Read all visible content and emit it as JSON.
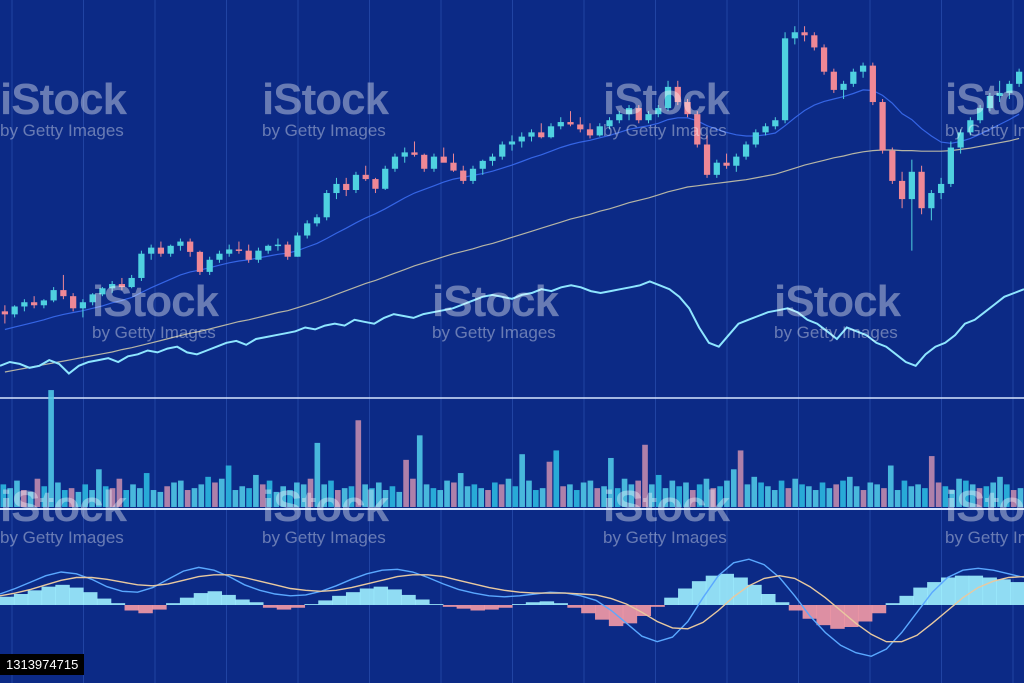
{
  "colors": {
    "background": "#0c2a86",
    "grid": "#2b4fb0",
    "up": "#4fd1e0",
    "down": "#ef8896",
    "price_line": "#8ee6ff",
    "ma_fast": "#3a6cf0",
    "ma_slow": "#c9c4a8",
    "divider": "#d7e6ff",
    "hist_pos": "#9ff0ff",
    "hist_neg": "#f49aa6"
  },
  "watermark": {
    "brand": "iStock",
    "credit": "by Getty Images"
  },
  "stock_id": "1313974715",
  "chart_data": [
    {
      "type": "candlestick",
      "panel": "price",
      "grid": true,
      "candles_ohlc": [
        [
          30,
          31,
          28,
          29.5
        ],
        [
          29.5,
          31,
          29,
          30.8
        ],
        [
          30.8,
          32,
          30,
          31.5
        ],
        [
          31.5,
          32.5,
          30.5,
          31
        ],
        [
          31,
          32,
          30.5,
          31.8
        ],
        [
          31.8,
          34,
          31.5,
          33.5
        ],
        [
          33.5,
          36,
          32,
          32.5
        ],
        [
          32.5,
          33,
          30,
          30.5
        ],
        [
          30.5,
          32,
          29,
          31.5
        ],
        [
          31.5,
          33,
          31,
          32.8
        ],
        [
          32.8,
          34,
          32.5,
          33.8
        ],
        [
          33.8,
          35,
          33,
          34.5
        ],
        [
          34.5,
          35.5,
          33.5,
          34
        ],
        [
          34,
          36,
          33.8,
          35.5
        ],
        [
          35.5,
          40,
          35,
          39.5
        ],
        [
          39.5,
          41,
          38.5,
          40.5
        ],
        [
          40.5,
          41.5,
          39,
          39.5
        ],
        [
          39.5,
          41,
          39,
          40.8
        ],
        [
          40.8,
          42,
          40,
          41.5
        ],
        [
          41.5,
          42,
          39,
          39.8
        ],
        [
          39.8,
          40,
          36,
          36.5
        ],
        [
          36.5,
          39,
          36,
          38.5
        ],
        [
          38.5,
          40,
          38,
          39.5
        ],
        [
          39.5,
          41,
          39,
          40.2
        ],
        [
          40.2,
          41.5,
          39.5,
          40
        ],
        [
          40,
          41,
          38,
          38.5
        ],
        [
          38.5,
          40.5,
          38,
          40
        ],
        [
          40,
          41,
          39.5,
          40.8
        ],
        [
          40.8,
          42,
          40,
          41
        ],
        [
          41,
          41.5,
          38.5,
          39
        ],
        [
          39,
          43,
          39,
          42.5
        ],
        [
          42.5,
          45,
          42,
          44.5
        ],
        [
          44.5,
          46,
          44,
          45.5
        ],
        [
          45.5,
          50,
          45,
          49.5
        ],
        [
          49.5,
          52,
          48.5,
          51
        ],
        [
          51,
          52,
          49,
          50
        ],
        [
          50,
          53,
          49.5,
          52.5
        ],
        [
          52.5,
          54,
          51.5,
          51.8
        ],
        [
          51.8,
          52,
          49.5,
          50.2
        ],
        [
          50.2,
          54,
          50,
          53.5
        ],
        [
          53.5,
          56,
          53,
          55.5
        ],
        [
          55.5,
          57,
          54.5,
          56.2
        ],
        [
          56.2,
          58,
          55.5,
          55.8
        ],
        [
          55.8,
          56,
          53,
          53.5
        ],
        [
          53.5,
          56,
          53,
          55.5
        ],
        [
          55.5,
          57,
          55,
          54.5
        ],
        [
          54.5,
          56,
          53,
          53.2
        ],
        [
          53.2,
          54,
          51,
          51.5
        ],
        [
          51.5,
          54,
          51,
          53.5
        ],
        [
          53.5,
          55,
          52.5,
          54.8
        ],
        [
          54.8,
          56,
          54,
          55.5
        ],
        [
          55.5,
          58,
          55,
          57.5
        ],
        [
          57.5,
          59,
          56.5,
          58
        ],
        [
          58,
          59.5,
          57,
          58.8
        ],
        [
          58.8,
          60,
          58,
          59.5
        ],
        [
          59.5,
          61,
          58.5,
          58.7
        ],
        [
          58.7,
          61,
          58.5,
          60.5
        ],
        [
          60.5,
          62,
          60,
          61.2
        ],
        [
          61.2,
          63,
          60.5,
          60.8
        ],
        [
          60.8,
          62,
          59.5,
          60
        ],
        [
          60,
          61,
          58.5,
          59
        ],
        [
          59,
          61,
          58.8,
          60.5
        ],
        [
          60.5,
          62,
          60,
          61.5
        ],
        [
          61.5,
          63,
          61,
          62.5
        ],
        [
          62.5,
          64,
          61.5,
          63.5
        ],
        [
          63.5,
          64,
          61,
          61.5
        ],
        [
          61.5,
          63,
          61,
          62.5
        ],
        [
          62.5,
          64,
          62,
          63.5
        ],
        [
          63.5,
          68,
          63,
          67
        ],
        [
          67,
          68,
          64,
          64.5
        ],
        [
          64.5,
          65,
          62,
          62.5
        ],
        [
          62.5,
          63,
          57,
          57.5
        ],
        [
          57.5,
          59,
          52,
          52.5
        ],
        [
          52.5,
          55,
          52,
          54.5
        ],
        [
          54.5,
          56,
          53.5,
          54
        ],
        [
          54,
          56,
          53,
          55.5
        ],
        [
          55.5,
          58,
          55,
          57.5
        ],
        [
          57.5,
          60,
          57,
          59.5
        ],
        [
          59.5,
          61,
          59,
          60.5
        ],
        [
          60.5,
          62,
          60,
          61.5
        ],
        [
          61.5,
          76,
          61,
          75
        ],
        [
          75,
          77,
          74,
          76
        ],
        [
          76,
          77,
          74.5,
          75.5
        ],
        [
          75.5,
          76,
          73,
          73.5
        ],
        [
          73.5,
          74,
          69,
          69.5
        ],
        [
          69.5,
          70,
          66,
          66.5
        ],
        [
          66.5,
          68,
          65,
          67.5
        ],
        [
          67.5,
          70,
          67,
          69.5
        ],
        [
          69.5,
          71,
          68.5,
          70.5
        ],
        [
          70.5,
          71,
          64,
          64.5
        ],
        [
          64.5,
          65,
          56,
          56.5
        ],
        [
          56.5,
          57,
          51,
          51.5
        ],
        [
          51.5,
          53,
          47,
          48.5
        ],
        [
          48.5,
          55,
          40,
          53
        ],
        [
          53,
          54,
          46,
          47
        ],
        [
          47,
          50,
          45,
          49.5
        ],
        [
          49.5,
          52,
          48.5,
          51
        ],
        [
          51,
          58,
          50.5,
          57
        ],
        [
          57,
          60,
          56,
          59.5
        ],
        [
          59.5,
          62,
          59,
          61.5
        ],
        [
          61.5,
          64,
          61,
          63.5
        ],
        [
          63.5,
          66,
          63,
          65.5
        ],
        [
          65.5,
          68,
          64.5,
          66
        ],
        [
          66,
          68,
          65,
          67.5
        ],
        [
          67.5,
          70,
          67,
          69.5
        ]
      ],
      "moving_averages": [
        {
          "period": "fast",
          "values": [
            27,
            27.4,
            27.8,
            28.2,
            28.6,
            29.1,
            29.5,
            29.8,
            30.1,
            30.5,
            30.9,
            31.4,
            31.8,
            32.3,
            33.1,
            33.9,
            34.6,
            35.3,
            36.0,
            36.5,
            36.8,
            37.2,
            37.6,
            38.0,
            38.3,
            38.5,
            38.8,
            39.1,
            39.4,
            39.6,
            40.0,
            40.6,
            41.2,
            42.0,
            42.9,
            43.7,
            44.6,
            45.4,
            46.1,
            46.9,
            47.8,
            48.7,
            49.5,
            50.1,
            50.7,
            51.3,
            51.8,
            52.1,
            52.4,
            52.7,
            53.1,
            53.6,
            54.1,
            54.7,
            55.3,
            55.8,
            56.4,
            57.0,
            57.5,
            57.9,
            58.2,
            58.6,
            59.0,
            59.5,
            60.0,
            60.3,
            60.6,
            61.0,
            61.6,
            61.9,
            61.9,
            61.4,
            60.6,
            60.0,
            59.5,
            59.1,
            58.9,
            58.9,
            59.1,
            59.4,
            60.6,
            61.9,
            63.1,
            64.0,
            64.6,
            65.0,
            65.4,
            65.9,
            66.5,
            66.4,
            65.6,
            64.3,
            62.6,
            61.6,
            60.1,
            58.9,
            57.9,
            57.7,
            58.0,
            58.5,
            59.2,
            60.0,
            60.8,
            61.6,
            62.5
          ]
        },
        {
          "period": "slow",
          "values": [
            20,
            20.3,
            20.6,
            20.9,
            21.2,
            21.5,
            21.8,
            22.1,
            22.4,
            22.7,
            23.0,
            23.3,
            23.7,
            24.0,
            24.4,
            24.8,
            25.2,
            25.6,
            26.0,
            26.4,
            26.7,
            27.1,
            27.5,
            27.9,
            28.3,
            28.6,
            29.0,
            29.4,
            29.8,
            30.1,
            30.6,
            31.1,
            31.6,
            32.2,
            32.8,
            33.4,
            34.0,
            34.6,
            35.1,
            35.7,
            36.3,
            36.9,
            37.5,
            38.0,
            38.5,
            39.0,
            39.5,
            39.9,
            40.3,
            40.8,
            41.2,
            41.7,
            42.2,
            42.7,
            43.2,
            43.7,
            44.2,
            44.7,
            45.2,
            45.6,
            46.0,
            46.5,
            46.9,
            47.4,
            47.9,
            48.3,
            48.7,
            49.2,
            49.7,
            50.1,
            50.5,
            50.7,
            50.9,
            51.1,
            51.3,
            51.5,
            51.7,
            52.0,
            52.3,
            52.6,
            53.1,
            53.6,
            54.1,
            54.5,
            54.9,
            55.3,
            55.6,
            56.0,
            56.3,
            56.5,
            56.6,
            56.6,
            56.5,
            56.5,
            56.4,
            56.4,
            56.4,
            56.5,
            56.7,
            56.9,
            57.2,
            57.5,
            57.8,
            58.1,
            58.5
          ]
        }
      ],
      "ylim": [
        20,
        80
      ]
    },
    {
      "type": "line",
      "panel": "relative-strength",
      "values": [
        30,
        31,
        30.5,
        29.5,
        30,
        31.5,
        30.5,
        28,
        30,
        31,
        31.5,
        32,
        31,
        32.5,
        33,
        34,
        33.5,
        34.5,
        35,
        33.5,
        33,
        34,
        35,
        36,
        36.5,
        35.5,
        37,
        37.5,
        38,
        38.5,
        39,
        40,
        39.5,
        40.5,
        41,
        40.5,
        42,
        41.5,
        41,
        42.5,
        43.5,
        43,
        42.5,
        43.5,
        44,
        44.5,
        45,
        46,
        47,
        48,
        48.5,
        48,
        47.5,
        48.5,
        49,
        50,
        49.5,
        50.5,
        51,
        50.5,
        49.5,
        49,
        49.5,
        50,
        50.5,
        51,
        52,
        51,
        50,
        48,
        45,
        40,
        36,
        35,
        38,
        41,
        42,
        43,
        44,
        44.5,
        45,
        44,
        42,
        41,
        39,
        37,
        40,
        39,
        38,
        36,
        35,
        33,
        31,
        30,
        33,
        35,
        36,
        38,
        41,
        42,
        44,
        46,
        48,
        49,
        50
      ],
      "ylim": [
        25,
        55
      ]
    },
    {
      "type": "bar",
      "panel": "volume",
      "values": [
        12,
        10,
        14,
        9,
        8,
        15,
        11,
        62,
        13,
        9,
        10,
        8,
        12,
        9,
        20,
        11,
        10,
        15,
        9,
        12,
        10,
        18,
        9,
        8,
        11,
        13,
        14,
        9,
        10,
        12,
        16,
        13,
        15,
        22,
        9,
        11,
        10,
        17,
        12,
        14,
        8,
        11,
        9,
        13,
        12,
        15,
        34,
        12,
        14,
        9,
        10,
        11,
        46,
        12,
        10,
        13,
        9,
        11,
        8,
        25,
        15,
        38,
        12,
        10,
        9,
        14,
        13,
        18,
        11,
        12,
        10,
        9,
        13,
        12,
        15,
        11,
        28,
        14,
        9,
        10,
        24,
        30,
        11,
        12,
        9,
        13,
        14,
        10,
        11,
        26,
        10,
        15,
        12,
        14,
        33,
        12,
        17,
        10,
        14,
        11,
        13,
        9,
        12,
        15,
        10,
        11,
        14,
        20,
        30,
        12,
        16,
        13,
        11,
        9,
        14,
        10,
        15,
        12,
        11,
        9,
        13,
        10,
        12,
        14,
        16,
        11,
        9,
        13,
        12,
        10,
        22,
        9,
        14,
        11,
        12,
        10,
        27,
        13,
        11,
        9,
        15,
        14,
        12,
        10,
        11,
        13,
        16,
        12,
        9,
        10
      ],
      "ylim": [
        0,
        70
      ]
    },
    {
      "type": "line",
      "panel": "macd",
      "series": [
        {
          "values": [
            1.2,
            1.8,
            2.5,
            3.2,
            3.6,
            3.4,
            2.8,
            2.0,
            1.5,
            1.4,
            1.9,
            2.8,
            3.7,
            4.1,
            3.8,
            3.1,
            2.2,
            1.6,
            1.2,
            1.0,
            1.1,
            1.5,
            2.1,
            2.8,
            3.4,
            3.8,
            3.9,
            3.6,
            3.0,
            2.3,
            1.7,
            1.3,
            1.0,
            0.9,
            1.0,
            1.2,
            1.4,
            1.3,
            1.0,
            0.5,
            -0.6,
            -2.0,
            -3.4,
            -4.0,
            -3.5,
            -1.8,
            0.8,
            3.2,
            4.6,
            5.0,
            4.4,
            3.0,
            1.0,
            -1.2,
            -3.0,
            -4.4,
            -5.2,
            -5.6,
            -4.8,
            -3.0,
            -0.8,
            1.4,
            3.0,
            3.8,
            4.0,
            3.8,
            3.4,
            3.0
          ]
        },
        {
          "values": [
            1.0,
            1.3,
            1.7,
            2.2,
            2.7,
            3.0,
            3.0,
            2.8,
            2.5,
            2.2,
            2.1,
            2.3,
            2.7,
            3.1,
            3.3,
            3.3,
            3.0,
            2.6,
            2.2,
            1.8,
            1.6,
            1.5,
            1.6,
            1.9,
            2.3,
            2.7,
            3.1,
            3.3,
            3.3,
            3.1,
            2.7,
            2.3,
            1.9,
            1.6,
            1.4,
            1.3,
            1.3,
            1.3,
            1.2,
            1.1,
            0.7,
            0.1,
            -0.8,
            -1.8,
            -2.5,
            -2.6,
            -1.9,
            -0.6,
            0.9,
            2.1,
            2.9,
            3.2,
            2.9,
            2.0,
            0.8,
            -0.6,
            -2.0,
            -3.2,
            -4.0,
            -4.0,
            -3.3,
            -2.0,
            -0.6,
            0.8,
            1.9,
            2.6,
            3.0,
            3.1
          ]
        }
      ],
      "histogram": [
        0.9,
        1.2,
        1.6,
        2.0,
        2.2,
        1.9,
        1.4,
        0.7,
        0.2,
        -0.6,
        -0.9,
        -0.5,
        0.2,
        0.8,
        1.3,
        1.5,
        1.1,
        0.6,
        0.3,
        -0.3,
        -0.5,
        -0.3,
        0.1,
        0.5,
        1.0,
        1.4,
        1.8,
        2.0,
        1.7,
        1.1,
        0.6,
        0.1,
        -0.2,
        -0.4,
        -0.6,
        -0.5,
        -0.3,
        0.1,
        0.3,
        0.4,
        0.2,
        -0.3,
        -0.9,
        -1.6,
        -2.3,
        -2.0,
        -1.2,
        -0.2,
        0.8,
        1.8,
        2.6,
        3.2,
        3.4,
        3.0,
        2.2,
        1.2,
        0.3,
        -0.6,
        -1.5,
        -2.2,
        -2.6,
        -2.4,
        -1.8,
        -0.9,
        0.2,
        1.0,
        1.9,
        2.5,
        3.0,
        3.2,
        3.2,
        3.0,
        2.8,
        2.5
      ],
      "ylim": [
        -6,
        6
      ]
    }
  ]
}
